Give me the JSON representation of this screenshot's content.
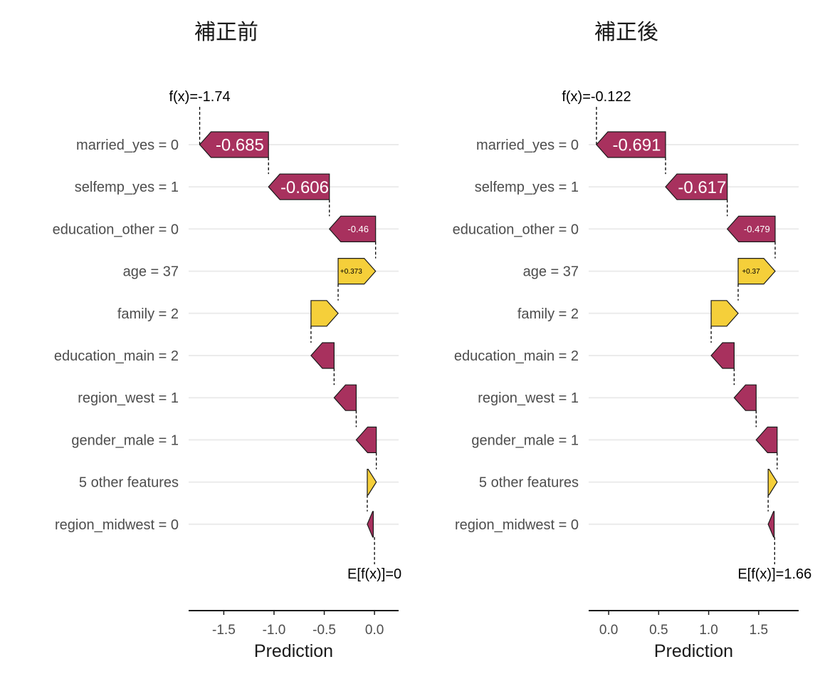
{
  "colors": {
    "negative": "#A8315E",
    "positive": "#F5CF3A",
    "outline": "#1a1a1a"
  },
  "chart_data": [
    {
      "type": "waterfall",
      "title": "補正前",
      "xlabel": "Prediction",
      "xlim": [
        -1.85,
        0.24
      ],
      "xticks": [
        -1.5,
        -1.0,
        -0.5,
        0.0
      ],
      "xtick_labels": [
        "-1.5",
        "-1.0",
        "-0.5",
        "0.0"
      ],
      "base_value": 0.0,
      "base_label": "E[f(x)]=0",
      "prediction": -1.74,
      "prediction_label": "f(x)=-1.74",
      "features": [
        "married_yes = 0",
        "selfemp_yes = 1",
        "education_other = 0",
        "age = 37",
        "family = 2",
        "education_main = 2",
        "region_west = 1",
        "gender_male = 1",
        "5 other features",
        "region_midwest = 0"
      ],
      "contributions": [
        -0.685,
        -0.606,
        -0.46,
        0.373,
        0.27,
        -0.23,
        -0.22,
        -0.2,
        0.09,
        -0.06
      ],
      "value_labels": [
        "-0.685",
        "-0.606",
        "-0.46",
        "+0.373",
        "",
        "",
        "",
        "",
        "",
        ""
      ]
    },
    {
      "type": "waterfall",
      "title": "補正後",
      "xlabel": "Prediction",
      "xlim": [
        -0.2,
        1.9
      ],
      "xticks": [
        0.0,
        0.5,
        1.0,
        1.5
      ],
      "xtick_labels": [
        "0.0",
        "0.5",
        "1.0",
        "1.5"
      ],
      "base_value": 1.66,
      "base_label": "E[f(x)]=1.66",
      "prediction": -0.122,
      "prediction_label": "f(x)=-0.122",
      "features": [
        "married_yes = 0",
        "selfemp_yes = 1",
        "education_other = 0",
        "age = 37",
        "family = 2",
        "education_main = 2",
        "region_west = 1",
        "gender_male = 1",
        "5 other features",
        "region_midwest = 0"
      ],
      "contributions": [
        -0.691,
        -0.617,
        -0.479,
        0.37,
        0.27,
        -0.23,
        -0.22,
        -0.21,
        0.09,
        -0.06
      ],
      "value_labels": [
        "-0.691",
        "-0.617",
        "-0.479",
        "+0.37",
        "",
        "",
        "",
        "",
        "",
        ""
      ]
    }
  ]
}
